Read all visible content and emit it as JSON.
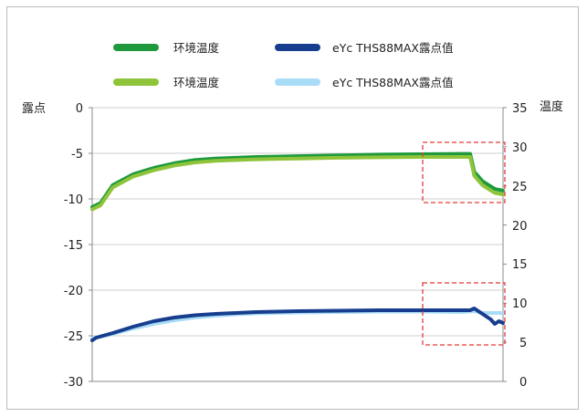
{
  "chart_data": {
    "type": "line",
    "y_left_label": "露点",
    "y_right_label": "温度",
    "y_left_range": [
      -30,
      0
    ],
    "y_left_ticks": [
      "0",
      "-5",
      "-10",
      "-15",
      "-20",
      "-25",
      "-30"
    ],
    "y_right_range": [
      0,
      35
    ],
    "y_right_ticks": [
      "35",
      "30",
      "25",
      "20",
      "15",
      "10",
      "5",
      "0"
    ],
    "grid": "horizontal",
    "legend_position": "top",
    "series": [
      {
        "name": "环境温度",
        "axis": "right",
        "color": "#1e9a3c",
        "x": [
          0,
          2,
          5,
          10,
          15,
          20,
          25,
          30,
          35,
          40,
          45,
          50,
          60,
          70,
          80,
          90,
          92,
          93,
          95,
          98,
          100
        ],
        "values": [
          22.3,
          22.8,
          25.1,
          26.5,
          27.3,
          27.9,
          28.3,
          28.5,
          28.6,
          28.7,
          28.75,
          28.8,
          28.9,
          29.0,
          29.05,
          29.1,
          29.1,
          26.8,
          25.6,
          24.6,
          24.4
        ]
      },
      {
        "name": "环境温度",
        "axis": "right",
        "color": "#8fc43a",
        "x": [
          0,
          2,
          5,
          10,
          15,
          20,
          25,
          30,
          35,
          40,
          45,
          50,
          60,
          70,
          80,
          90,
          92,
          93,
          95,
          98,
          100
        ],
        "values": [
          22.0,
          22.5,
          24.8,
          26.2,
          27.0,
          27.6,
          28.0,
          28.2,
          28.3,
          28.4,
          28.45,
          28.5,
          28.6,
          28.65,
          28.7,
          28.7,
          28.7,
          26.3,
          25.1,
          24.1,
          23.9
        ]
      },
      {
        "name": "eYc THS88MAX露点值",
        "axis": "left",
        "color": "#a9ddf7",
        "x": [
          0,
          5,
          10,
          15,
          20,
          25,
          30,
          35,
          40,
          45,
          50,
          60,
          70,
          80,
          90,
          93,
          95,
          96,
          98,
          100
        ],
        "values": [
          -25.3,
          -24.8,
          -24.2,
          -23.7,
          -23.3,
          -23.0,
          -22.8,
          -22.65,
          -22.55,
          -22.5,
          -22.45,
          -22.4,
          -22.35,
          -22.35,
          -22.4,
          -22.3,
          -22.5,
          -22.5,
          -22.5,
          -22.5
        ]
      },
      {
        "name": "eYc THS88MAX露点值",
        "axis": "left",
        "color": "#173e8e",
        "x": [
          0,
          1,
          5,
          10,
          15,
          20,
          25,
          30,
          35,
          40,
          45,
          50,
          60,
          70,
          80,
          90,
          92,
          93,
          94,
          95,
          97,
          98,
          99,
          100
        ],
        "values": [
          -25.5,
          -25.2,
          -24.7,
          -24.0,
          -23.4,
          -23.0,
          -22.75,
          -22.6,
          -22.5,
          -22.4,
          -22.35,
          -22.3,
          -22.25,
          -22.2,
          -22.2,
          -22.2,
          -22.2,
          -22.0,
          -22.3,
          -22.6,
          -23.2,
          -23.7,
          -23.4,
          -23.6
        ]
      }
    ],
    "legend": [
      {
        "label": "环境温度",
        "color": "#1e9a3c"
      },
      {
        "label": "eYc THS88MAX露点值",
        "color": "#173e8e"
      },
      {
        "label": "环境温度",
        "color": "#8fc43a"
      },
      {
        "label": "eYc THS88MAX露点值",
        "color": "#a9ddf7"
      }
    ],
    "highlight_color": "#e53935"
  }
}
